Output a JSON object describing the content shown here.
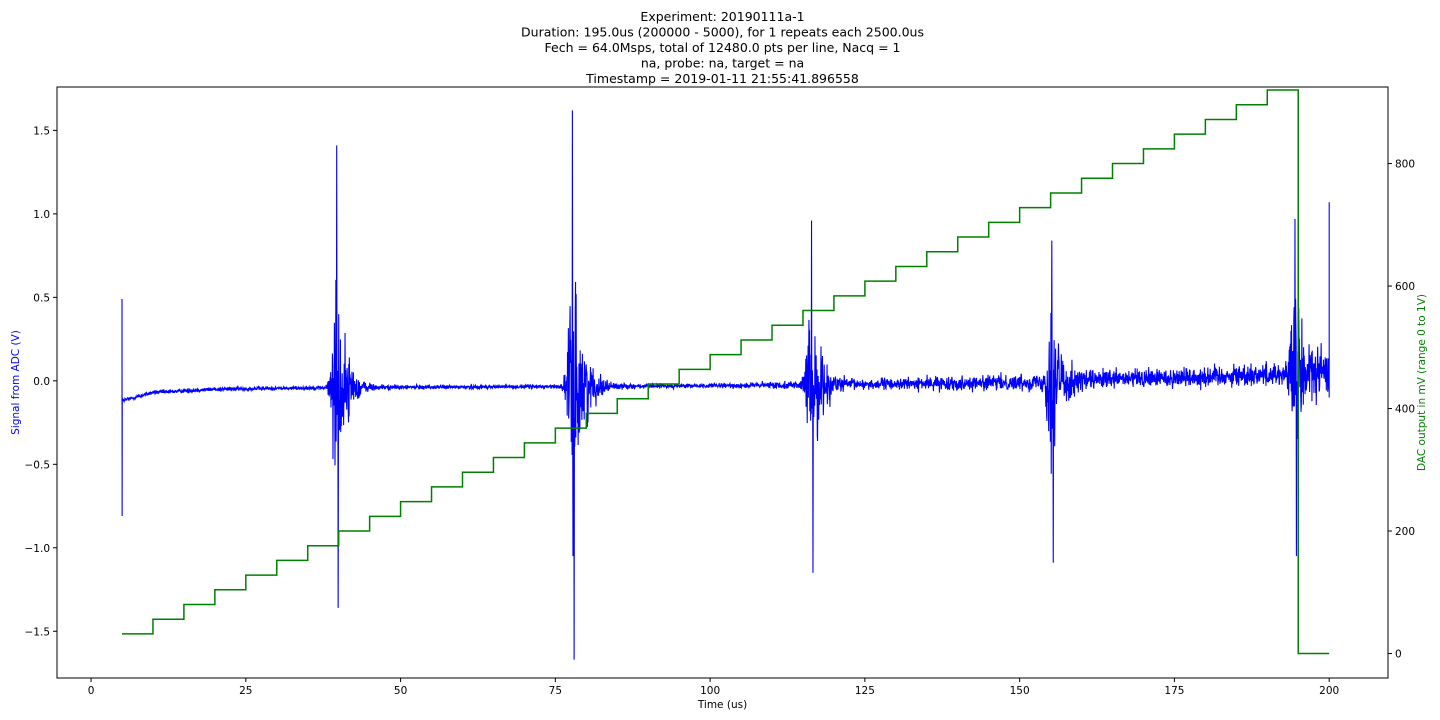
{
  "chart_data": {
    "type": "line",
    "title_lines": [
      "Experiment: 20190111a-1",
      "Duration: 195.0us (200000 - 5000), for 1 repeats each 2500.0us",
      "Fech = 64.0Msps, total of 12480.0 pts per line, Nacq = 1",
      "na, probe: na, target = na",
      "Timestamp = 2019-01-11 21:55:41.896558"
    ],
    "xlabel": "Time (us)",
    "ylabel_left": "Signal from ADC (V)",
    "ylabel_right": "DAC output in mV (range 0 to 1V)",
    "xlim": [
      -5.5,
      209.5
    ],
    "ylim_left": [
      -1.78,
      1.76
    ],
    "ylim_right": [
      -40,
      925
    ],
    "x_ticks": [
      0,
      25,
      50,
      75,
      100,
      125,
      150,
      175,
      200
    ],
    "x_tick_labels": [
      "0",
      "25",
      "50",
      "75",
      "100",
      "125",
      "150",
      "175",
      "200"
    ],
    "y_left_ticks": [
      -1.5,
      -1.0,
      -0.5,
      0.0,
      0.5,
      1.0,
      1.5
    ],
    "y_left_tick_labels": [
      "−1.5",
      "−1.0",
      "−0.5",
      "0.0",
      "0.5",
      "1.0",
      "1.5"
    ],
    "y_right_ticks": [
      0,
      200,
      400,
      600,
      800
    ],
    "y_right_tick_labels": [
      "0",
      "200",
      "400",
      "600",
      "800"
    ],
    "grid": false,
    "series": [
      {
        "axis": "left",
        "color": "#0000ff",
        "x_range": [
          5,
          200
        ],
        "baseline": [
          [
            5,
            -0.12
          ],
          [
            10,
            -0.07
          ],
          [
            20,
            -0.05
          ],
          [
            40,
            -0.04
          ],
          [
            100,
            -0.03
          ],
          [
            150,
            -0.01
          ],
          [
            200,
            0.05
          ]
        ],
        "start_spike": {
          "x": 5,
          "max": 0.49,
          "min": -0.81
        },
        "bursts": [
          {
            "center": 39.8,
            "width": 1.6,
            "max": 1.41,
            "min": -1.36
          },
          {
            "center": 77.9,
            "width": 1.8,
            "max": 1.62,
            "min": -1.67
          },
          {
            "center": 116.5,
            "width": 1.6,
            "max": 0.96,
            "min": -1.15
          },
          {
            "center": 155.3,
            "width": 1.6,
            "max": 0.84,
            "min": -1.09
          },
          {
            "center": 194.6,
            "width": 2.2,
            "max": 0.97,
            "min": -1.05
          }
        ],
        "end_spike": {
          "x": 200,
          "max": 1.07,
          "min": -0.1
        }
      },
      {
        "axis": "right",
        "color": "#008000",
        "type": "step",
        "x": [
          5,
          10,
          15,
          20,
          25,
          30,
          35,
          40,
          45,
          50,
          55,
          60,
          65,
          70,
          75,
          80,
          85,
          90,
          95,
          100,
          105,
          110,
          115,
          120,
          125,
          130,
          135,
          140,
          145,
          150,
          155,
          160,
          165,
          170,
          175,
          180,
          185,
          190,
          195,
          200
        ],
        "values": [
          32,
          56,
          80,
          104,
          128,
          152,
          176,
          200,
          224,
          248,
          272,
          296,
          320,
          344,
          368,
          392,
          416,
          440,
          464,
          488,
          512,
          536,
          560,
          584,
          608,
          632,
          656,
          680,
          704,
          728,
          752,
          776,
          800,
          824,
          848,
          872,
          896,
          920,
          0,
          0
        ]
      }
    ]
  }
}
